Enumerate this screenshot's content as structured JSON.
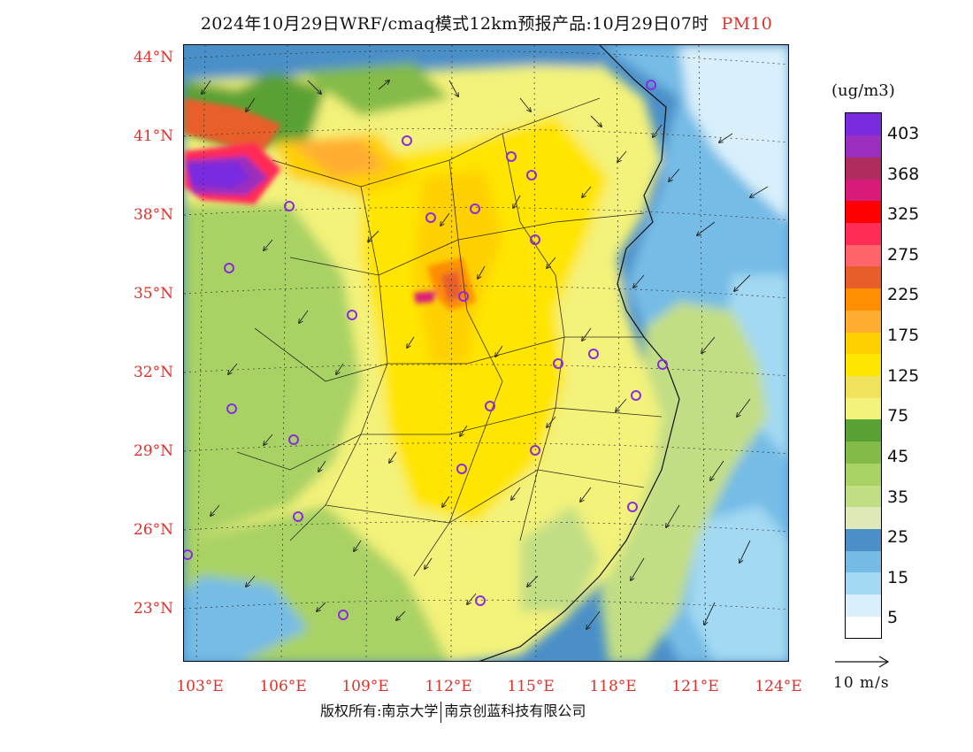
{
  "title": {
    "text": "2024年10月29日WRF/cmaq模式12km预报产品:10月29日07时",
    "pollutant": "PM10"
  },
  "axes": {
    "lat_labels": [
      "44°N",
      "41°N",
      "38°N",
      "35°N",
      "32°N",
      "29°N",
      "26°N",
      "23°N"
    ],
    "lon_labels": [
      "103°E",
      "106°E",
      "109°E",
      "112°E",
      "115°E",
      "118°E",
      "121°E",
      "124°E"
    ]
  },
  "legend": {
    "unit": "(ug/m3)",
    "bins": [
      {
        "color": "#ffffff"
      },
      {
        "color": "#d9f0fb"
      },
      {
        "color": "#a3d9f3"
      },
      {
        "color": "#74bce6"
      },
      {
        "color": "#4a8fc8"
      },
      {
        "color": "#dde9b7"
      },
      {
        "color": "#c2de85"
      },
      {
        "color": "#a9d265"
      },
      {
        "color": "#84bb48"
      },
      {
        "color": "#5aa135"
      },
      {
        "color": "#f3f27a"
      },
      {
        "color": "#f0e25c"
      },
      {
        "color": "#ffe500"
      },
      {
        "color": "#ffd000"
      },
      {
        "color": "#ffad32"
      },
      {
        "color": "#ff8e00"
      },
      {
        "color": "#e85e2a"
      },
      {
        "color": "#ff6468"
      },
      {
        "color": "#ff2c55"
      },
      {
        "color": "#ff0000"
      },
      {
        "color": "#d81b79"
      },
      {
        "color": "#b02c5f"
      },
      {
        "color": "#9b2fbd"
      },
      {
        "color": "#7a2be0"
      }
    ],
    "tick_labels": [
      "403",
      "368",
      "325",
      "275",
      "225",
      "175",
      "125",
      "75",
      "45",
      "35",
      "25",
      "15",
      "5"
    ],
    "wind_reference": "10 m/s"
  },
  "colors": {
    "axis_label": "#e0302a",
    "station_marker": "#8a2be2"
  },
  "footer": {
    "left": "版权所有:南京大学",
    "right": "南京创蓝科技有限公司"
  }
}
